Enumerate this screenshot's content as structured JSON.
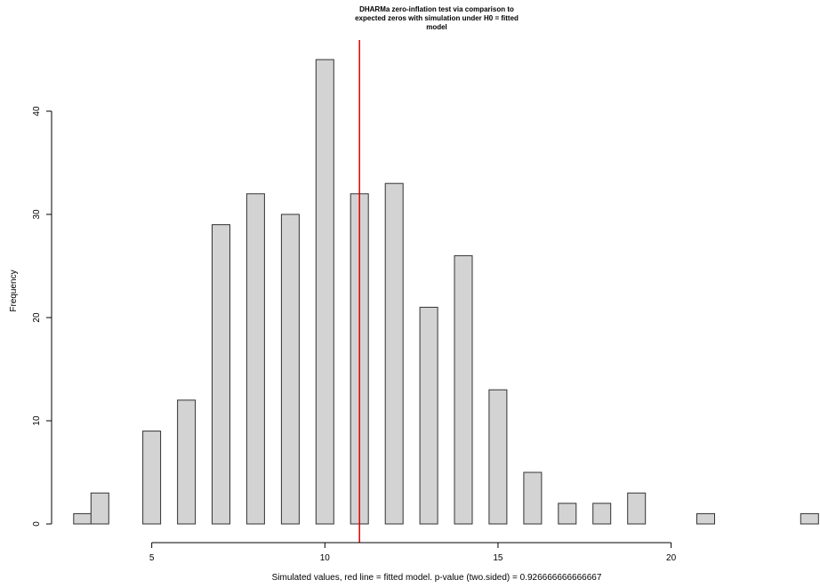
{
  "chart_data": {
    "type": "bar",
    "title_lines": [
      "DHARMa zero-inflation test via comparison to",
      "expected zeros with simulation under H0 = fitted",
      "model"
    ],
    "xlabel": "Simulated values, red line = fitted model. p-value (two.sided) = 0.926666666666667",
    "ylabel": "Frequency",
    "x": [
      3,
      3.5,
      5,
      6,
      7,
      8,
      9,
      10,
      11,
      12,
      13,
      14,
      15,
      16,
      17,
      18,
      19,
      21,
      24
    ],
    "values": [
      1,
      3,
      9,
      12,
      29,
      32,
      30,
      45,
      32,
      33,
      21,
      26,
      13,
      5,
      2,
      2,
      3,
      1,
      1
    ],
    "xlim": [
      2.8,
      24.3
    ],
    "ylim": [
      0,
      45
    ],
    "xticks": [
      5,
      10,
      15,
      20
    ],
    "yticks": [
      0,
      10,
      20,
      30,
      40
    ],
    "observed_value": 11,
    "bar_color": "#d3d3d3",
    "bar_edge_color": "#333333",
    "line_color": "#e00000",
    "grid": false
  }
}
